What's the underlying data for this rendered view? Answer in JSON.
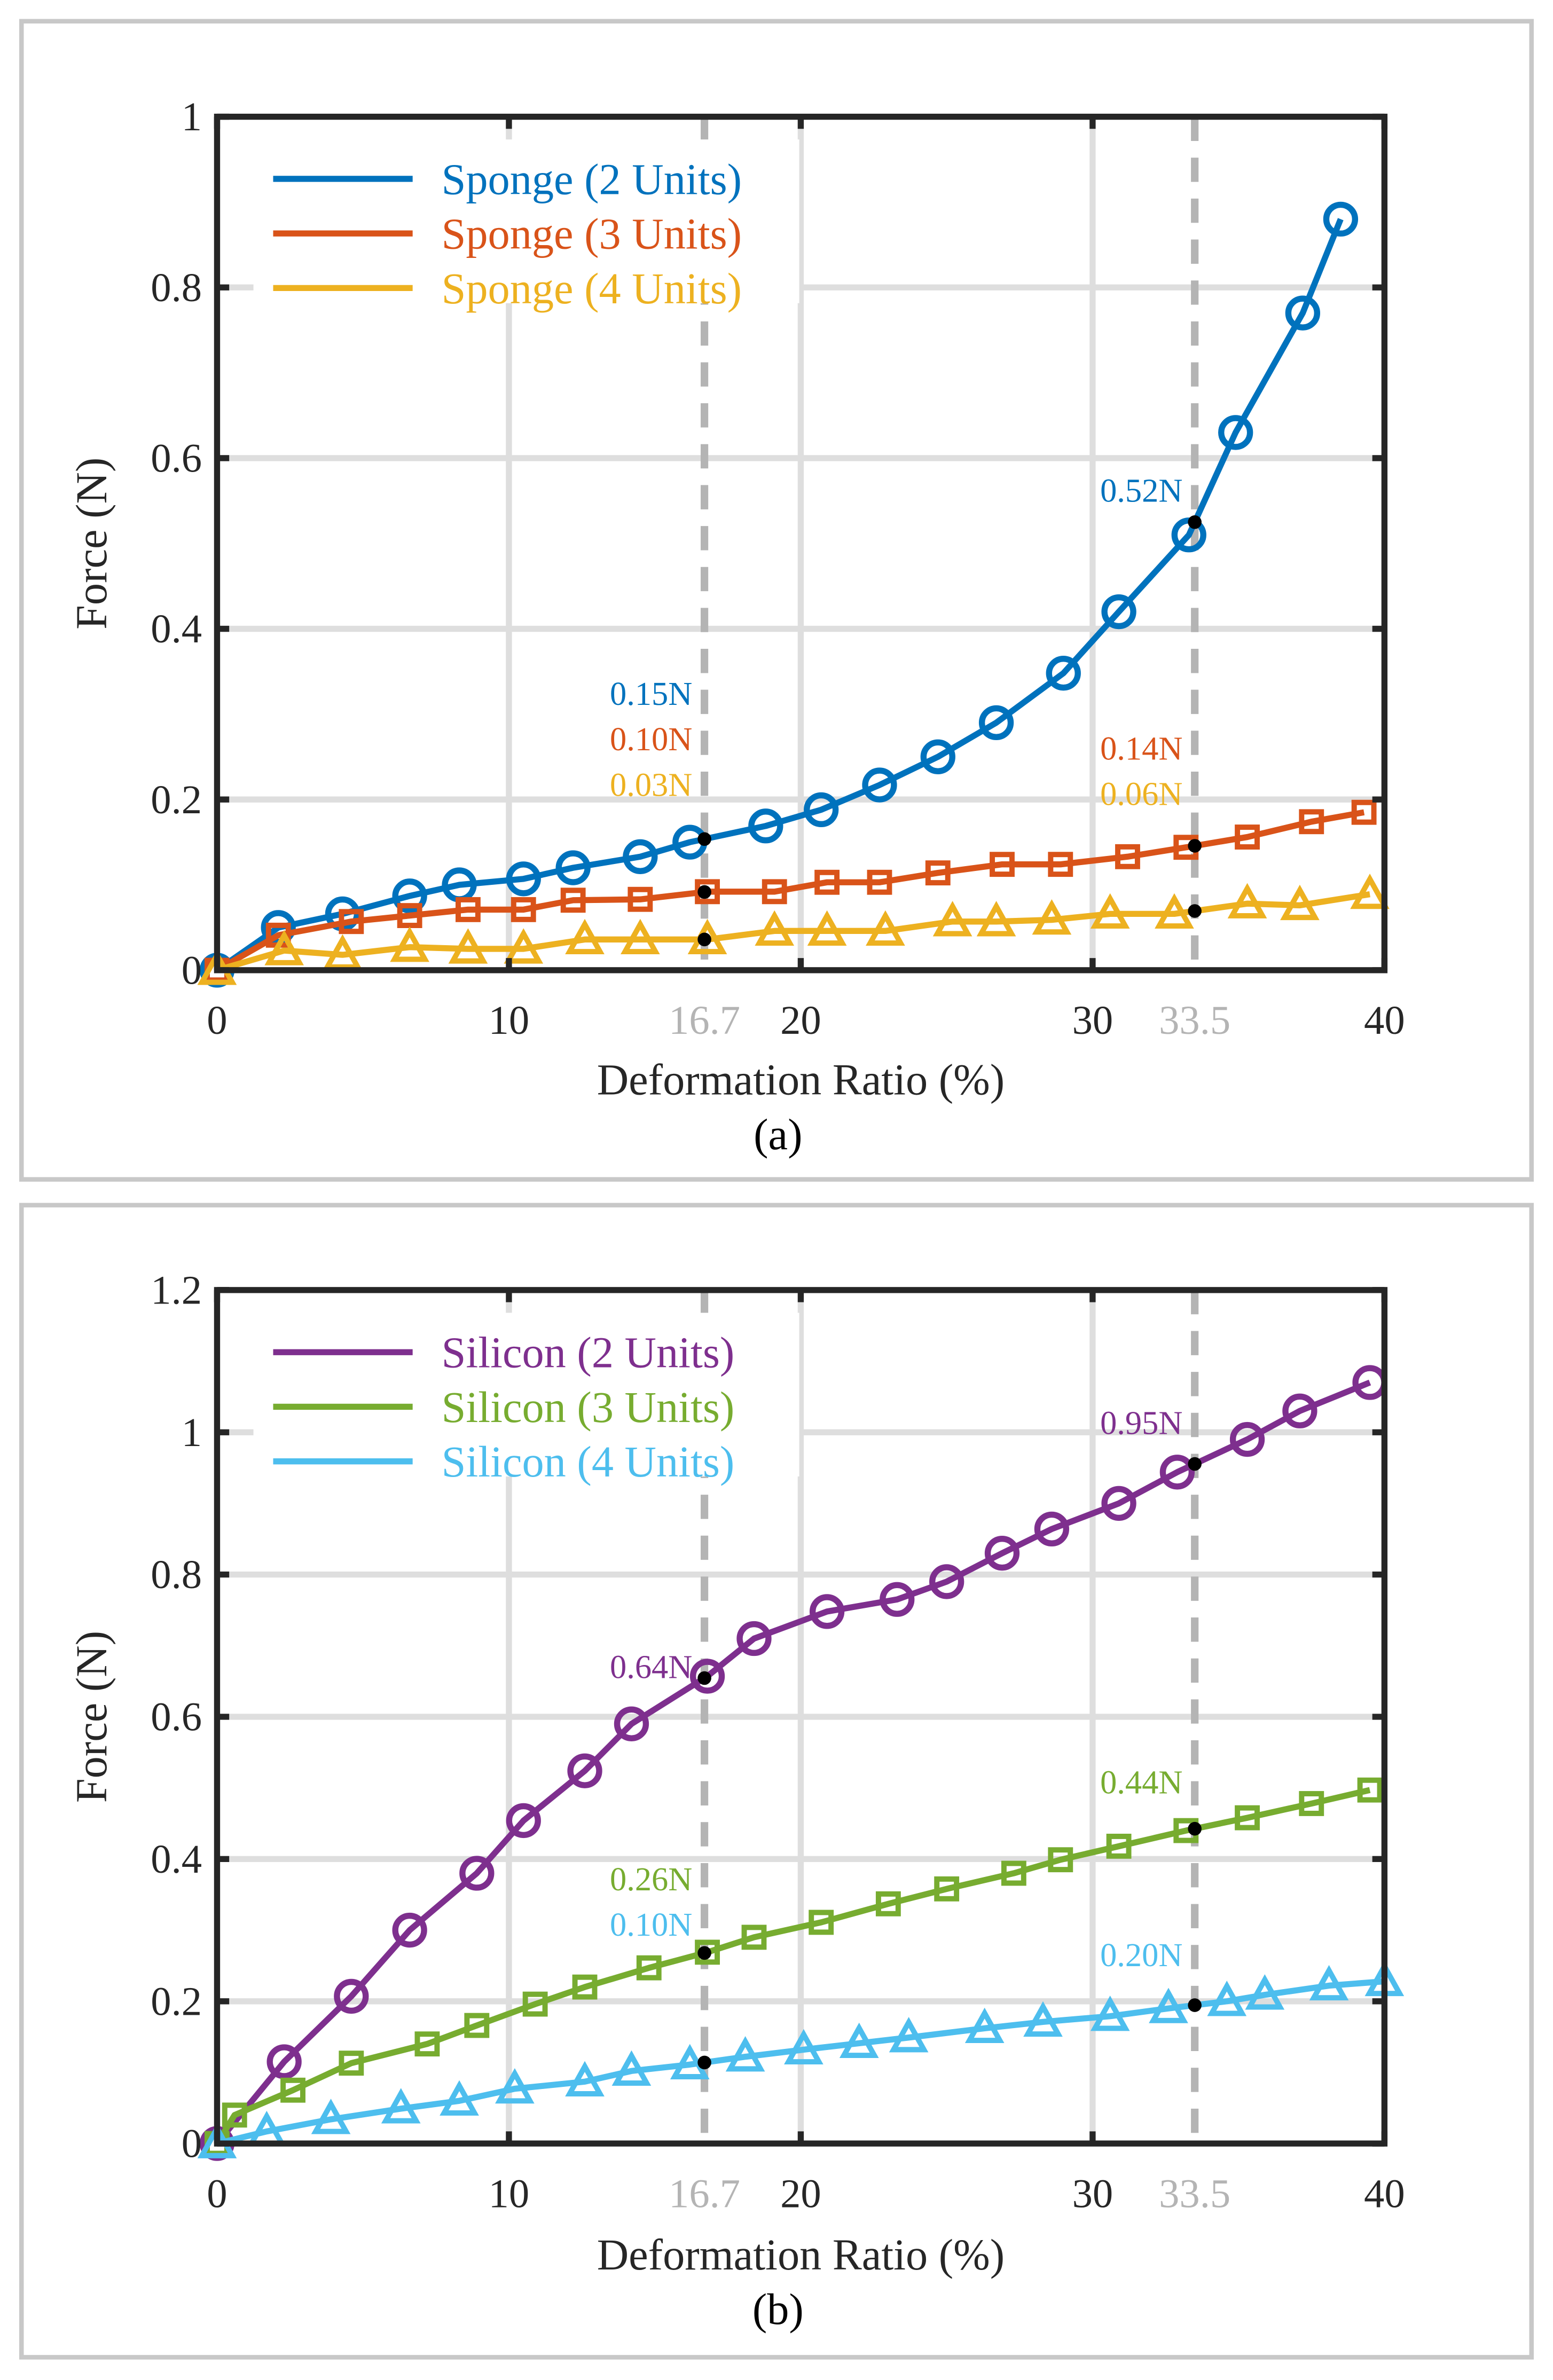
{
  "chart_data": [
    {
      "type": "line",
      "caption": "(a)",
      "xlabel": "Deformation Ratio (%)",
      "ylabel": "Force (N)",
      "xlim": [
        0,
        40
      ],
      "ylim": [
        0,
        1
      ],
      "xticks": [
        {
          "v": 0,
          "label": "0"
        },
        {
          "v": 10,
          "label": "10"
        },
        {
          "v": 20,
          "label": "20"
        },
        {
          "v": 30,
          "label": "30"
        },
        {
          "v": 40,
          "label": "40"
        }
      ],
      "highlight_xticks": [
        {
          "v": 16.7,
          "label": "16.7"
        },
        {
          "v": 33.5,
          "label": "33.5"
        }
      ],
      "yticks": [
        {
          "v": 0,
          "label": "0"
        },
        {
          "v": 0.2,
          "label": "0.2"
        },
        {
          "v": 0.4,
          "label": "0.4"
        },
        {
          "v": 0.6,
          "label": "0.6"
        },
        {
          "v": 0.8,
          "label": "0.8"
        },
        {
          "v": 1,
          "label": "1"
        }
      ],
      "grid": true,
      "legend_position": "top-left",
      "series": [
        {
          "name": "Sponge (2 Units)",
          "color": "#0072BD",
          "marker": "circle",
          "x": [
            0,
            2.1,
            4.3,
            6.6,
            8.3,
            10.5,
            12.2,
            14.5,
            16.2,
            18.8,
            20.7,
            22.7,
            24.7,
            26.7,
            29.0,
            30.9,
            33.3,
            34.9,
            37.2,
            38.5
          ],
          "y": [
            0,
            0.05,
            0.066,
            0.087,
            0.1,
            0.107,
            0.12,
            0.133,
            0.15,
            0.169,
            0.188,
            0.217,
            0.25,
            0.29,
            0.348,
            0.42,
            0.51,
            0.63,
            0.77,
            0.88
          ]
        },
        {
          "name": "Sponge (3 Units)",
          "color": "#D95319",
          "marker": "square",
          "x": [
            0,
            2.1,
            4.6,
            6.6,
            8.6,
            10.5,
            12.2,
            14.5,
            16.8,
            19.1,
            20.9,
            22.7,
            24.7,
            26.9,
            28.9,
            31.2,
            33.2,
            35.3,
            37.5,
            39.3
          ],
          "y": [
            0,
            0.041,
            0.057,
            0.064,
            0.071,
            0.071,
            0.082,
            0.083,
            0.092,
            0.092,
            0.103,
            0.103,
            0.114,
            0.124,
            0.124,
            0.133,
            0.144,
            0.156,
            0.174,
            0.185
          ]
        },
        {
          "name": "Sponge (4 Units)",
          "color": "#EDB120",
          "marker": "triangle",
          "x": [
            0,
            2.3,
            4.3,
            6.6,
            8.6,
            10.5,
            12.6,
            14.5,
            16.8,
            19.1,
            20.9,
            22.9,
            25.2,
            26.7,
            28.6,
            30.6,
            32.8,
            35.3,
            37.1,
            39.5
          ],
          "y": [
            0,
            0.023,
            0.018,
            0.027,
            0.025,
            0.025,
            0.036,
            0.036,
            0.036,
            0.046,
            0.046,
            0.046,
            0.057,
            0.057,
            0.059,
            0.066,
            0.066,
            0.078,
            0.076,
            0.089
          ]
        }
      ],
      "annotations": [
        {
          "x": 16.7,
          "series": 0,
          "text": "0.15N"
        },
        {
          "x": 16.7,
          "series": 1,
          "text": "0.10N"
        },
        {
          "x": 16.7,
          "series": 2,
          "text": "0.03N"
        },
        {
          "x": 33.5,
          "series": 0,
          "text": "0.52N"
        },
        {
          "x": 33.5,
          "series": 1,
          "text": "0.14N"
        },
        {
          "x": 33.5,
          "series": 2,
          "text": "0.06N"
        }
      ]
    },
    {
      "type": "line",
      "caption": "(b)",
      "xlabel": "Deformation Ratio (%)",
      "ylabel": "Force (N)",
      "xlim": [
        0,
        40
      ],
      "ylim": [
        0,
        1.2
      ],
      "xticks": [
        {
          "v": 0,
          "label": "0"
        },
        {
          "v": 10,
          "label": "10"
        },
        {
          "v": 20,
          "label": "20"
        },
        {
          "v": 30,
          "label": "30"
        },
        {
          "v": 40,
          "label": "40"
        }
      ],
      "highlight_xticks": [
        {
          "v": 16.7,
          "label": "16.7"
        },
        {
          "v": 33.5,
          "label": "33.5"
        }
      ],
      "yticks": [
        {
          "v": 0,
          "label": "0"
        },
        {
          "v": 0.2,
          "label": "0.2"
        },
        {
          "v": 0.4,
          "label": "0.4"
        },
        {
          "v": 0.6,
          "label": "0.6"
        },
        {
          "v": 0.8,
          "label": "0.8"
        },
        {
          "v": 1,
          "label": "1"
        },
        {
          "v": 1.2,
          "label": "1.2"
        }
      ],
      "grid": true,
      "legend_position": "top-left",
      "series": [
        {
          "name": "Silicon (2 Units)",
          "color": "#7E2F8E",
          "marker": "circle",
          "x": [
            0,
            2.3,
            4.6,
            6.6,
            8.9,
            10.5,
            12.6,
            14.2,
            16.8,
            18.4,
            20.9,
            23.3,
            25.0,
            26.9,
            28.6,
            30.9,
            32.9,
            35.3,
            37.1,
            39.5
          ],
          "y": [
            0,
            0.115,
            0.207,
            0.3,
            0.38,
            0.454,
            0.524,
            0.59,
            0.657,
            0.71,
            0.748,
            0.765,
            0.79,
            0.83,
            0.864,
            0.9,
            0.944,
            0.99,
            1.03,
            1.07
          ]
        },
        {
          "name": "Silicon (3 Units)",
          "color": "#77AC30",
          "marker": "square",
          "x": [
            0,
            0.6,
            2.6,
            4.6,
            7.2,
            8.9,
            10.9,
            12.6,
            14.8,
            16.8,
            18.4,
            20.7,
            23.0,
            25.0,
            27.3,
            28.9,
            30.9,
            33.2,
            35.3,
            37.5,
            39.5
          ],
          "y": [
            0,
            0.04,
            0.075,
            0.113,
            0.14,
            0.166,
            0.196,
            0.22,
            0.247,
            0.269,
            0.29,
            0.311,
            0.337,
            0.358,
            0.38,
            0.399,
            0.418,
            0.44,
            0.458,
            0.478,
            0.497
          ]
        },
        {
          "name": "Silicon (4 Units)",
          "color": "#4DBEEE",
          "marker": "triangle",
          "x": [
            0,
            1.7,
            3.9,
            6.3,
            8.3,
            10.2,
            12.6,
            14.2,
            16.2,
            18.1,
            20.1,
            22.0,
            23.7,
            26.3,
            28.3,
            30.6,
            32.6,
            34.6,
            35.9,
            38.1,
            40
          ],
          "y": [
            0,
            0.017,
            0.034,
            0.049,
            0.06,
            0.077,
            0.087,
            0.102,
            0.111,
            0.122,
            0.132,
            0.141,
            0.149,
            0.162,
            0.171,
            0.179,
            0.19,
            0.2,
            0.209,
            0.222,
            0.228
          ]
        }
      ],
      "annotations": [
        {
          "x": 16.7,
          "series": 0,
          "text": "0.64N"
        },
        {
          "x": 16.7,
          "series": 1,
          "text": "0.26N"
        },
        {
          "x": 16.7,
          "series": 2,
          "text": "0.10N"
        },
        {
          "x": 33.5,
          "series": 0,
          "text": "0.95N"
        },
        {
          "x": 33.5,
          "series": 1,
          "text": "0.44N"
        },
        {
          "x": 33.5,
          "series": 2,
          "text": "0.20N"
        }
      ]
    }
  ]
}
